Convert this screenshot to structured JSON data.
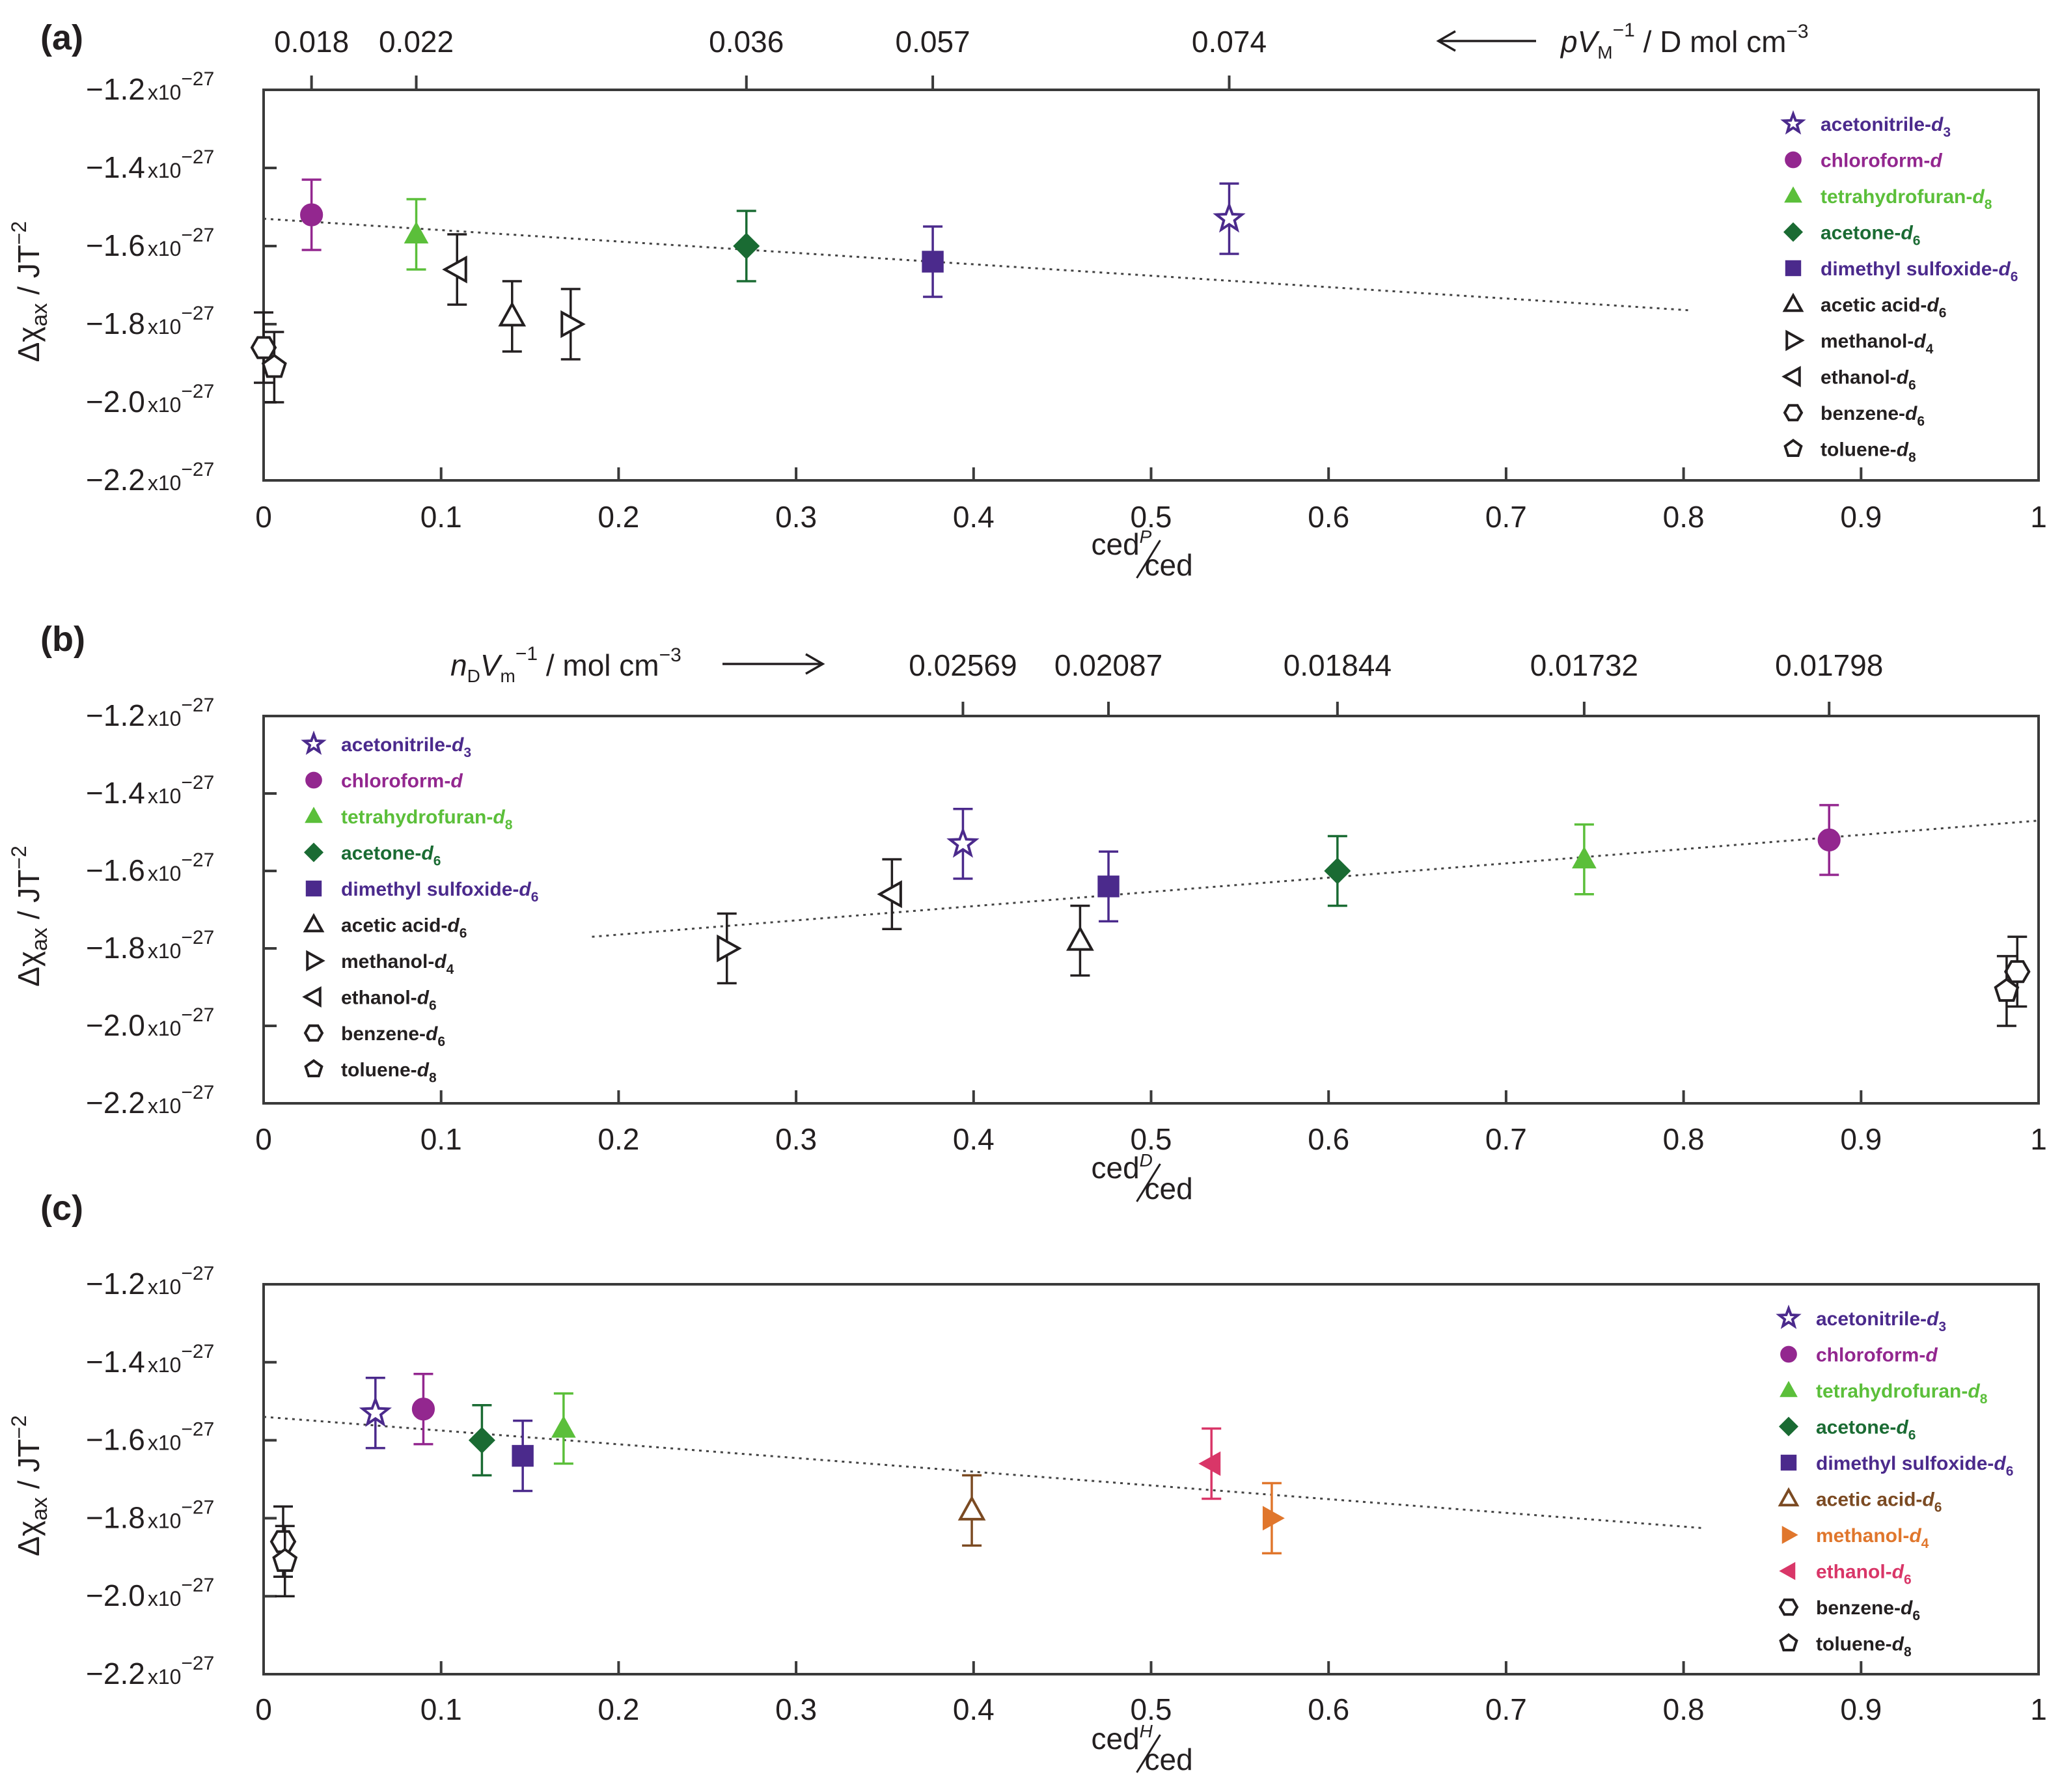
{
  "chart_data": [
    {
      "type": "scatter",
      "panel_label": "(a)",
      "xlabel_main": "ced",
      "xlabel_sup": "P",
      "xlabel_den": "ced",
      "ylabel": "Δχax / JT−2",
      "xlim": [
        0,
        1
      ],
      "ylim": [
        -2.2,
        -1.2
      ],
      "y_exponent": "-27",
      "x_ticks": [
        "0",
        "0.1",
        "0.2",
        "0.3",
        "0.4",
        "0.5",
        "0.6",
        "0.7",
        "0.8",
        "0.9",
        "1"
      ],
      "y_ticks": [
        "-1.2",
        "-1.4",
        "-1.6",
        "-1.8",
        "-2.0",
        "-2.2"
      ],
      "top_axis": {
        "label": "pVM−1 / D mol cm−3",
        "direction": "left",
        "ticks": [
          {
            "x": 0.027,
            "label": "0.018"
          },
          {
            "x": 0.086,
            "label": "0.022"
          },
          {
            "x": 0.272,
            "label": "0.036"
          },
          {
            "x": 0.377,
            "label": "0.057"
          },
          {
            "x": 0.544,
            "label": "0.074"
          }
        ]
      },
      "legend_position": "top-right",
      "trendline": {
        "x": [
          0.0,
          0.805
        ],
        "y": [
          -1.53,
          -1.765
        ]
      },
      "series": [
        {
          "name": "acetonitrile-d3",
          "x": 0.544,
          "y": -1.53,
          "err": 0.09
        },
        {
          "name": "chloroform-d",
          "x": 0.027,
          "y": -1.52,
          "err": 0.09
        },
        {
          "name": "tetrahydrofuran-d8",
          "x": 0.086,
          "y": -1.57,
          "err": 0.09
        },
        {
          "name": "acetone-d6",
          "x": 0.272,
          "y": -1.6,
          "err": 0.09
        },
        {
          "name": "dimethyl sulfoxide-d6",
          "x": 0.377,
          "y": -1.64,
          "err": 0.09
        },
        {
          "name": "acetic acid-d6",
          "x": 0.14,
          "y": -1.78,
          "err": 0.09
        },
        {
          "name": "methanol-d4",
          "x": 0.173,
          "y": -1.8,
          "err": 0.09
        },
        {
          "name": "ethanol-d6",
          "x": 0.109,
          "y": -1.66,
          "err": 0.09
        },
        {
          "name": "benzene-d6",
          "x": 0.0,
          "y": -1.86,
          "err": 0.09
        },
        {
          "name": "toluene-d8",
          "x": 0.006,
          "y": -1.91,
          "err": 0.09
        }
      ]
    },
    {
      "type": "scatter",
      "panel_label": "(b)",
      "xlabel_main": "ced",
      "xlabel_sup": "D",
      "xlabel_den": "ced",
      "ylabel": "Δχax / JT−2",
      "xlim": [
        0,
        1
      ],
      "ylim": [
        -2.2,
        -1.2
      ],
      "y_exponent": "-27",
      "x_ticks": [
        "0",
        "0.1",
        "0.2",
        "0.3",
        "0.4",
        "0.5",
        "0.6",
        "0.7",
        "0.8",
        "0.9",
        "1"
      ],
      "y_ticks": [
        "-1.2",
        "-1.4",
        "-1.6",
        "-1.8",
        "-2.0",
        "-2.2"
      ],
      "top_axis": {
        "label": "nDVm−1 / mol cm−3",
        "direction": "right",
        "ticks": [
          {
            "x": 0.394,
            "label": "0.02569"
          },
          {
            "x": 0.476,
            "label": "0.02087"
          },
          {
            "x": 0.605,
            "label": "0.01844"
          },
          {
            "x": 0.744,
            "label": "0.01732"
          },
          {
            "x": 0.882,
            "label": "0.01798"
          }
        ]
      },
      "legend_position": "top-left",
      "trendline": {
        "x": [
          0.185,
          1.0
        ],
        "y": [
          -1.77,
          -1.47
        ]
      },
      "series": [
        {
          "name": "acetonitrile-d3",
          "x": 0.394,
          "y": -1.53,
          "err": 0.09
        },
        {
          "name": "chloroform-d",
          "x": 0.882,
          "y": -1.52,
          "err": 0.09
        },
        {
          "name": "tetrahydrofuran-d8",
          "x": 0.744,
          "y": -1.57,
          "err": 0.09
        },
        {
          "name": "acetone-d6",
          "x": 0.605,
          "y": -1.6,
          "err": 0.09
        },
        {
          "name": "dimethyl sulfoxide-d6",
          "x": 0.476,
          "y": -1.64,
          "err": 0.09
        },
        {
          "name": "acetic acid-d6",
          "x": 0.46,
          "y": -1.78,
          "err": 0.09
        },
        {
          "name": "methanol-d4",
          "x": 0.261,
          "y": -1.8,
          "err": 0.09
        },
        {
          "name": "ethanol-d6",
          "x": 0.354,
          "y": -1.66,
          "err": 0.09
        },
        {
          "name": "benzene-d6",
          "x": 0.988,
          "y": -1.86,
          "err": 0.09
        },
        {
          "name": "toluene-d8",
          "x": 0.982,
          "y": -1.91,
          "err": 0.09
        }
      ]
    },
    {
      "type": "scatter",
      "panel_label": "(c)",
      "xlabel_main": "ced",
      "xlabel_sup": "H",
      "xlabel_den": "ced",
      "ylabel": "Δχax / JT−2",
      "xlim": [
        0,
        1
      ],
      "ylim": [
        -2.2,
        -1.2
      ],
      "y_exponent": "-27",
      "x_ticks": [
        "0",
        "0.1",
        "0.2",
        "0.3",
        "0.4",
        "0.5",
        "0.6",
        "0.7",
        "0.8",
        "0.9",
        "1"
      ],
      "y_ticks": [
        "-1.2",
        "-1.4",
        "-1.6",
        "-1.8",
        "-2.0",
        "-2.2"
      ],
      "legend_position": "top-right",
      "trendline": {
        "x": [
          0.0,
          0.81
        ],
        "y": [
          -1.54,
          -1.825
        ]
      },
      "series": [
        {
          "name": "acetonitrile-d3",
          "x": 0.063,
          "y": -1.53,
          "err": 0.09
        },
        {
          "name": "chloroform-d",
          "x": 0.09,
          "y": -1.52,
          "err": 0.09
        },
        {
          "name": "tetrahydrofuran-d8",
          "x": 0.169,
          "y": -1.57,
          "err": 0.09
        },
        {
          "name": "acetone-d6",
          "x": 0.123,
          "y": -1.6,
          "err": 0.09
        },
        {
          "name": "dimethyl sulfoxide-d6",
          "x": 0.146,
          "y": -1.64,
          "err": 0.09
        },
        {
          "name": "acetic acid-d6",
          "x": 0.399,
          "y": -1.78,
          "err": 0.09
        },
        {
          "name": "methanol-d4",
          "x": 0.568,
          "y": -1.8,
          "err": 0.09
        },
        {
          "name": "ethanol-d6",
          "x": 0.534,
          "y": -1.66,
          "err": 0.09
        },
        {
          "name": "benzene-d6",
          "x": 0.011,
          "y": -1.86,
          "err": 0.09
        },
        {
          "name": "toluene-d8",
          "x": 0.012,
          "y": -1.91,
          "err": 0.09
        }
      ]
    }
  ],
  "solvents": [
    {
      "name": "acetonitrile-d3",
      "base": "acetonitrile-",
      "sub": "3",
      "marker": "star",
      "filled": false,
      "color": "#4b2a8c"
    },
    {
      "name": "chloroform-d",
      "base": "chloroform-",
      "sub": "",
      "marker": "circle",
      "filled": true,
      "color": "#93278f"
    },
    {
      "name": "tetrahydrofuran-d8",
      "base": "tetrahydrofuran-",
      "sub": "8",
      "marker": "triangle-up",
      "filled": true,
      "color": "#5bbf3a"
    },
    {
      "name": "acetone-d6",
      "base": "acetone-",
      "sub": "6",
      "marker": "diamond",
      "filled": true,
      "color": "#1a6b33"
    },
    {
      "name": "dimethyl sulfoxide-d6",
      "base": "dimethyl sulfoxide-",
      "sub": "6",
      "marker": "square",
      "filled": true,
      "color": "#4b2a8c"
    },
    {
      "name": "acetic acid-d6",
      "base": "acetic acid-",
      "sub": "6",
      "marker": "triangle-up",
      "filled": false,
      "color": "#231f20",
      "color_c": "#7b4a22"
    },
    {
      "name": "methanol-d4",
      "base": "methanol-",
      "sub": "4",
      "marker": "triangle-right",
      "filled": false,
      "color": "#231f20",
      "color_c": "#e0762c",
      "filled_c": true
    },
    {
      "name": "ethanol-d6",
      "base": "ethanol-",
      "sub": "6",
      "marker": "triangle-left",
      "filled": false,
      "color": "#231f20",
      "color_c": "#d93668",
      "filled_c": true
    },
    {
      "name": "benzene-d6",
      "base": "benzene-",
      "sub": "6",
      "marker": "hexagon",
      "filled": false,
      "color": "#231f20"
    },
    {
      "name": "toluene-d8",
      "base": "toluene-",
      "sub": "8",
      "marker": "pentagon",
      "filled": false,
      "color": "#231f20"
    }
  ],
  "legend_letter": "d"
}
